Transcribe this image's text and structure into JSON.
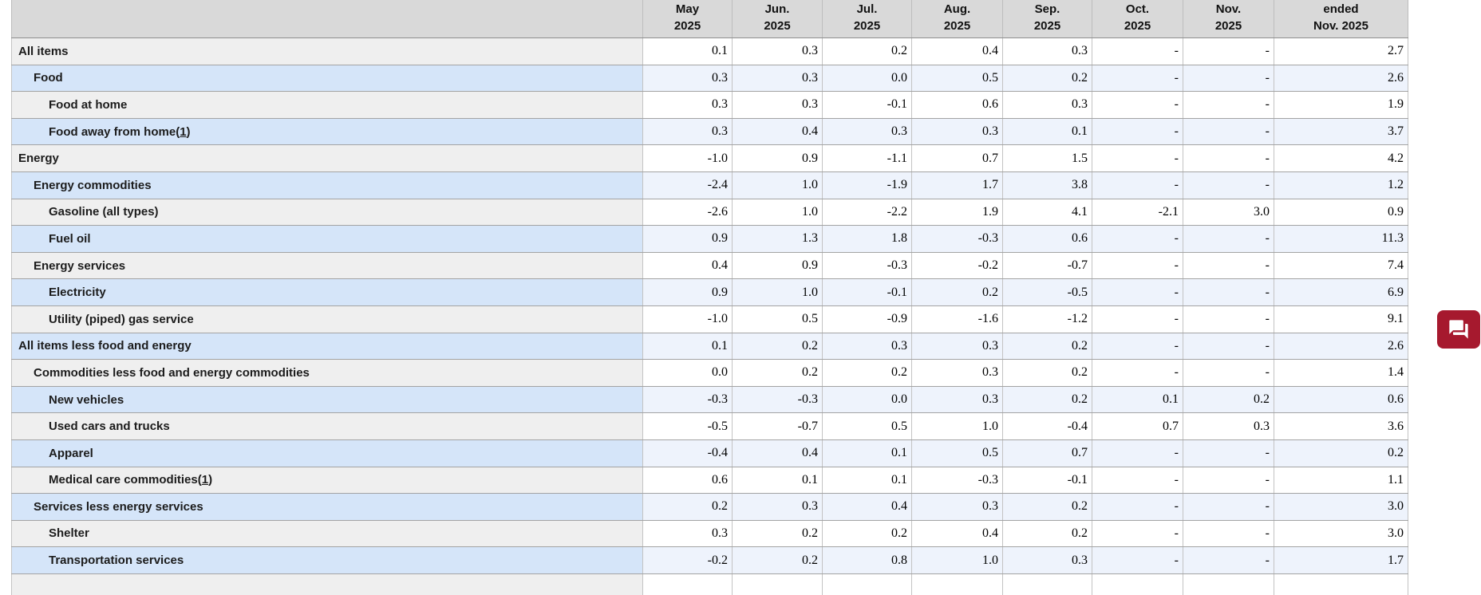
{
  "table": {
    "columns": [
      {
        "line1": "May",
        "line2": "2025"
      },
      {
        "line1": "Jun.",
        "line2": "2025"
      },
      {
        "line1": "Jul.",
        "line2": "2025"
      },
      {
        "line1": "Aug.",
        "line2": "2025"
      },
      {
        "line1": "Sep.",
        "line2": "2025"
      },
      {
        "line1": "Oct.",
        "line2": "2025"
      },
      {
        "line1": "Nov.",
        "line2": "2025"
      },
      {
        "line1": "ended",
        "line2": "Nov. 2025"
      }
    ],
    "rows": [
      {
        "label": "All items",
        "indent": 0,
        "footnote": null,
        "values": [
          "0.1",
          "0.3",
          "0.2",
          "0.4",
          "0.3",
          "-",
          "-",
          "2.7"
        ]
      },
      {
        "label": "Food",
        "indent": 1,
        "footnote": null,
        "values": [
          "0.3",
          "0.3",
          "0.0",
          "0.5",
          "0.2",
          "-",
          "-",
          "2.6"
        ]
      },
      {
        "label": "Food at home",
        "indent": 2,
        "footnote": null,
        "values": [
          "0.3",
          "0.3",
          "-0.1",
          "0.6",
          "0.3",
          "-",
          "-",
          "1.9"
        ]
      },
      {
        "label": "Food away from home",
        "indent": 2,
        "footnote": "1",
        "values": [
          "0.3",
          "0.4",
          "0.3",
          "0.3",
          "0.1",
          "-",
          "-",
          "3.7"
        ]
      },
      {
        "label": "Energy",
        "indent": 0,
        "footnote": null,
        "values": [
          "-1.0",
          "0.9",
          "-1.1",
          "0.7",
          "1.5",
          "-",
          "-",
          "4.2"
        ]
      },
      {
        "label": "Energy commodities",
        "indent": 1,
        "footnote": null,
        "values": [
          "-2.4",
          "1.0",
          "-1.9",
          "1.7",
          "3.8",
          "-",
          "-",
          "1.2"
        ]
      },
      {
        "label": "Gasoline (all types)",
        "indent": 2,
        "footnote": null,
        "values": [
          "-2.6",
          "1.0",
          "-2.2",
          "1.9",
          "4.1",
          "-2.1",
          "3.0",
          "0.9"
        ]
      },
      {
        "label": "Fuel oil",
        "indent": 2,
        "footnote": null,
        "values": [
          "0.9",
          "1.3",
          "1.8",
          "-0.3",
          "0.6",
          "-",
          "-",
          "11.3"
        ]
      },
      {
        "label": "Energy services",
        "indent": 1,
        "footnote": null,
        "values": [
          "0.4",
          "0.9",
          "-0.3",
          "-0.2",
          "-0.7",
          "-",
          "-",
          "7.4"
        ]
      },
      {
        "label": "Electricity",
        "indent": 2,
        "footnote": null,
        "values": [
          "0.9",
          "1.0",
          "-0.1",
          "0.2",
          "-0.5",
          "-",
          "-",
          "6.9"
        ]
      },
      {
        "label": "Utility (piped) gas service",
        "indent": 2,
        "footnote": null,
        "values": [
          "-1.0",
          "0.5",
          "-0.9",
          "-1.6",
          "-1.2",
          "-",
          "-",
          "9.1"
        ]
      },
      {
        "label": "All items less food and energy",
        "indent": 0,
        "footnote": null,
        "values": [
          "0.1",
          "0.2",
          "0.3",
          "0.3",
          "0.2",
          "-",
          "-",
          "2.6"
        ]
      },
      {
        "label": "Commodities less food and energy commodities",
        "indent": 1,
        "footnote": null,
        "values": [
          "0.0",
          "0.2",
          "0.2",
          "0.3",
          "0.2",
          "-",
          "-",
          "1.4"
        ]
      },
      {
        "label": "New vehicles",
        "indent": 2,
        "footnote": null,
        "values": [
          "-0.3",
          "-0.3",
          "0.0",
          "0.3",
          "0.2",
          "0.1",
          "0.2",
          "0.6"
        ]
      },
      {
        "label": "Used cars and trucks",
        "indent": 2,
        "footnote": null,
        "values": [
          "-0.5",
          "-0.7",
          "0.5",
          "1.0",
          "-0.4",
          "0.7",
          "0.3",
          "3.6"
        ]
      },
      {
        "label": "Apparel",
        "indent": 2,
        "footnote": null,
        "values": [
          "-0.4",
          "0.4",
          "0.1",
          "0.5",
          "0.7",
          "-",
          "-",
          "0.2"
        ]
      },
      {
        "label": "Medical care commodities",
        "indent": 2,
        "footnote": "1",
        "values": [
          "0.6",
          "0.1",
          "0.1",
          "-0.3",
          "-0.1",
          "-",
          "-",
          "1.1"
        ]
      },
      {
        "label": "Services less energy services",
        "indent": 1,
        "footnote": null,
        "values": [
          "0.2",
          "0.3",
          "0.4",
          "0.3",
          "0.2",
          "-",
          "-",
          "3.0"
        ]
      },
      {
        "label": "Shelter",
        "indent": 2,
        "footnote": null,
        "values": [
          "0.3",
          "0.2",
          "0.2",
          "0.4",
          "0.2",
          "-",
          "-",
          "3.0"
        ]
      },
      {
        "label": "Transportation services",
        "indent": 2,
        "footnote": null,
        "values": [
          "-0.2",
          "0.2",
          "0.8",
          "1.0",
          "0.3",
          "-",
          "-",
          "1.7"
        ]
      }
    ]
  },
  "chat_button": {
    "icon": "forum-chat-icon",
    "background": "#a6192e",
    "icon_color": "#ffffff"
  },
  "colors": {
    "header_bg": "#d9d9d9",
    "row_gray_label_bg": "#efefef",
    "row_white_data_bg": "#ffffff",
    "row_blue_label_bg": "#d5e5f9",
    "row_blue_data_bg": "#eef3fc",
    "accent_red": "#a6192e"
  }
}
